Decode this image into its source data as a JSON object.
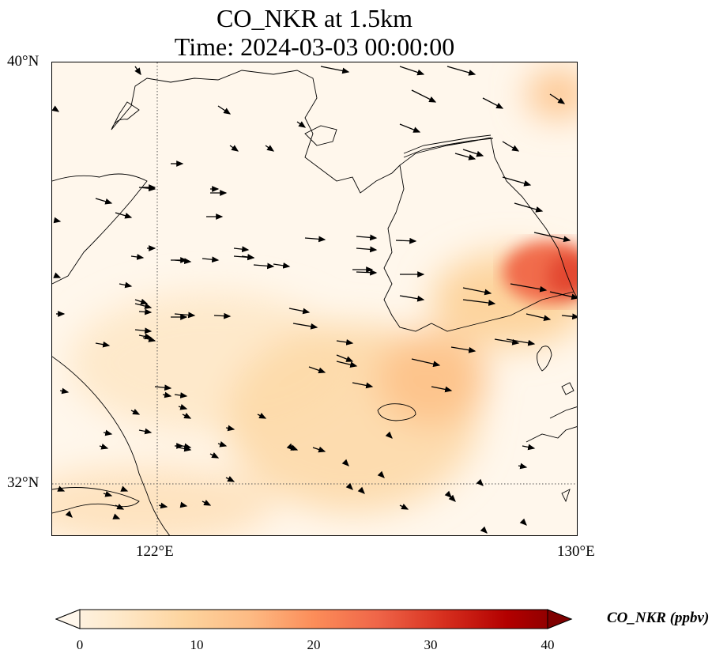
{
  "title": {
    "line1": "CO_NKR at 1.5km",
    "line2": "Time: 2024-03-03 00:00:00"
  },
  "axes": {
    "lat_top": "40°N",
    "lat_bottom": "32°N",
    "lon_left": "122°E",
    "lon_right": "130°E"
  },
  "colorbar": {
    "label": "CO_NKR (ppbv)",
    "ticks": [
      "0",
      "10",
      "20",
      "30",
      "40"
    ],
    "colormap": "OrRd",
    "extend": "both"
  },
  "colors": {
    "low": "#fff7ec",
    "mid": "#fdbb84",
    "high": "#d7301f",
    "max": "#7f0000"
  },
  "layers": [
    "CO_NKR concentration field",
    "wind vectors",
    "coastlines",
    "lat/lon gridlines"
  ]
}
